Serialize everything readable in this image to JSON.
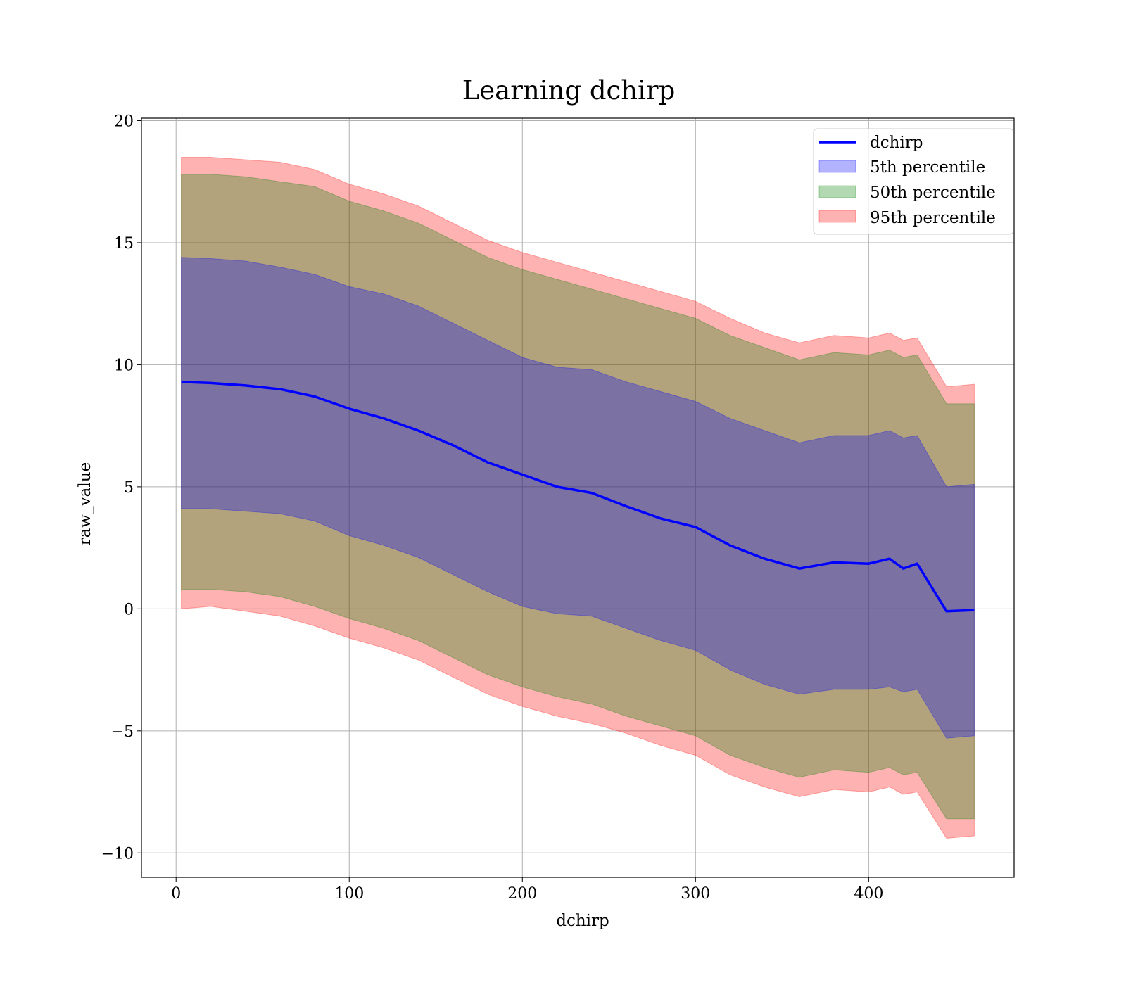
{
  "chart_data": {
    "type": "area",
    "title": "Learning dchirp",
    "xlabel": "dchirp",
    "ylabel": "raw_value",
    "xlim": [
      -20,
      484
    ],
    "ylim": [
      -11,
      20.1
    ],
    "xticks": [
      0,
      100,
      200,
      300,
      400
    ],
    "xtick_labels": [
      "0",
      "100",
      "200",
      "300",
      "400"
    ],
    "yticks": [
      -10,
      -5,
      0,
      5,
      10,
      15,
      20
    ],
    "ytick_labels": [
      "−10",
      "−5",
      "0",
      "5",
      "10",
      "15",
      "20"
    ],
    "grid": true,
    "legend_position": "top-right",
    "x": [
      3,
      20,
      40,
      60,
      80,
      100,
      120,
      140,
      160,
      180,
      200,
      220,
      240,
      260,
      280,
      300,
      320,
      340,
      360,
      380,
      400,
      412,
      420,
      428,
      445,
      461
    ],
    "series": [
      {
        "name": "dchirp",
        "kind": "line",
        "color": "#0000ff",
        "values": [
          9.3,
          9.25,
          9.15,
          9.0,
          8.7,
          8.2,
          7.8,
          7.3,
          6.7,
          6.0,
          5.5,
          5.0,
          4.75,
          4.2,
          3.7,
          3.35,
          2.6,
          2.05,
          1.65,
          1.9,
          1.85,
          2.05,
          1.65,
          1.85,
          -0.1,
          -0.05
        ]
      },
      {
        "name": "5th percentile",
        "kind": "band",
        "color": "#0000ff",
        "upper": [
          14.4,
          14.35,
          14.25,
          14.0,
          13.7,
          13.2,
          12.9,
          12.4,
          11.7,
          11.0,
          10.3,
          9.9,
          9.8,
          9.3,
          8.9,
          8.5,
          7.8,
          7.3,
          6.8,
          7.1,
          7.1,
          7.3,
          7.0,
          7.1,
          5.0,
          5.1
        ],
        "lower": [
          4.1,
          4.1,
          4.0,
          3.9,
          3.6,
          3.0,
          2.6,
          2.1,
          1.4,
          0.7,
          0.1,
          -0.2,
          -0.3,
          -0.8,
          -1.3,
          -1.7,
          -2.5,
          -3.1,
          -3.5,
          -3.3,
          -3.3,
          -3.2,
          -3.4,
          -3.3,
          -5.3,
          -5.2
        ]
      },
      {
        "name": "50th percentile",
        "kind": "band",
        "color": "#008000",
        "upper": [
          17.8,
          17.8,
          17.7,
          17.5,
          17.3,
          16.7,
          16.3,
          15.8,
          15.1,
          14.4,
          13.9,
          13.5,
          13.1,
          12.7,
          12.3,
          11.9,
          11.2,
          10.7,
          10.2,
          10.5,
          10.4,
          10.6,
          10.3,
          10.4,
          8.4,
          8.4
        ],
        "lower": [
          0.8,
          0.8,
          0.7,
          0.5,
          0.1,
          -0.4,
          -0.8,
          -1.3,
          -2.0,
          -2.7,
          -3.2,
          -3.6,
          -3.9,
          -4.4,
          -4.8,
          -5.2,
          -6.0,
          -6.5,
          -6.9,
          -6.6,
          -6.7,
          -6.5,
          -6.8,
          -6.7,
          -8.6,
          -8.6
        ]
      },
      {
        "name": "95th percentile",
        "kind": "band",
        "color": "#ff0000",
        "upper": [
          18.5,
          18.5,
          18.4,
          18.3,
          18.0,
          17.4,
          17.0,
          16.5,
          15.8,
          15.1,
          14.6,
          14.2,
          13.8,
          13.4,
          13.0,
          12.6,
          11.9,
          11.3,
          10.9,
          11.2,
          11.1,
          11.3,
          11.0,
          11.1,
          9.1,
          9.2
        ],
        "lower": [
          0.0,
          0.1,
          -0.1,
          -0.3,
          -0.7,
          -1.2,
          -1.6,
          -2.1,
          -2.8,
          -3.5,
          -4.0,
          -4.4,
          -4.7,
          -5.1,
          -5.6,
          -6.0,
          -6.8,
          -7.3,
          -7.7,
          -7.4,
          -7.5,
          -7.3,
          -7.6,
          -7.5,
          -9.4,
          -9.3
        ]
      }
    ]
  }
}
